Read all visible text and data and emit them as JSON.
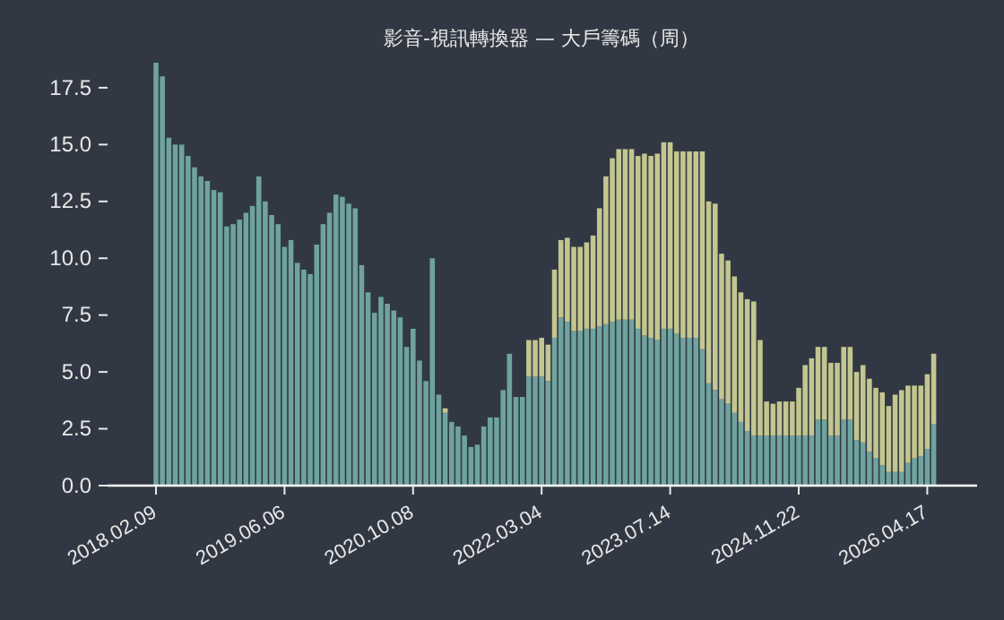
{
  "chart_data": {
    "type": "bar",
    "title": "影音-視訊轉換器 — 大戶籌碼（周）",
    "stacked": true,
    "categories": [
      "2018.02.09",
      null,
      null,
      null,
      null,
      null,
      null,
      null,
      null,
      null,
      null,
      null,
      null,
      null,
      null,
      null,
      null,
      null,
      null,
      null,
      "2019.06.06",
      null,
      null,
      null,
      null,
      null,
      null,
      null,
      null,
      null,
      null,
      null,
      null,
      null,
      null,
      null,
      null,
      null,
      null,
      null,
      "2020.10.08",
      null,
      null,
      null,
      null,
      null,
      null,
      null,
      null,
      null,
      null,
      null,
      null,
      null,
      null,
      null,
      null,
      null,
      null,
      null,
      "2022.03.04",
      null,
      null,
      null,
      null,
      null,
      null,
      null,
      null,
      null,
      null,
      null,
      null,
      null,
      null,
      null,
      null,
      null,
      null,
      null,
      "2023.07.14",
      null,
      null,
      null,
      null,
      null,
      null,
      null,
      null,
      null,
      null,
      null,
      null,
      null,
      null,
      null,
      null,
      null,
      null,
      null,
      "2024.11.22",
      null,
      null,
      null,
      null,
      null,
      null,
      null,
      null,
      null,
      null,
      null,
      null,
      null,
      null,
      null,
      null,
      null,
      null,
      null,
      "2026.04.17",
      null
    ],
    "series": [
      {
        "color": "#6fa39f",
        "values": [
          18.6,
          18.0,
          15.3,
          15.0,
          15.0,
          14.5,
          14.0,
          13.6,
          13.4,
          13.0,
          12.9,
          11.4,
          11.5,
          11.7,
          12.0,
          12.3,
          13.6,
          12.5,
          11.9,
          11.5,
          10.5,
          10.8,
          9.8,
          9.5,
          9.3,
          10.6,
          11.5,
          12.0,
          12.8,
          12.7,
          12.4,
          12.2,
          9.7,
          8.5,
          7.6,
          8.3,
          8.0,
          7.7,
          7.4,
          6.1,
          6.9,
          5.5,
          4.6,
          10.0,
          4.0,
          3.2,
          2.8,
          2.6,
          2.2,
          1.7,
          1.8,
          2.6,
          3.0,
          3.0,
          4.2,
          5.8,
          3.9,
          3.9,
          4.8,
          4.8,
          4.8,
          4.6,
          6.5,
          7.4,
          7.2,
          6.8,
          6.8,
          6.9,
          6.9,
          7.0,
          7.1,
          7.2,
          7.3,
          7.3,
          7.3,
          6.9,
          6.6,
          6.5,
          6.4,
          6.9,
          6.9,
          6.7,
          6.5,
          6.5,
          6.5,
          6.0,
          4.5,
          4.2,
          3.8,
          3.6,
          3.2,
          2.8,
          2.4,
          2.2,
          2.2,
          2.2,
          2.2,
          2.2,
          2.2,
          2.2,
          2.2,
          2.2,
          2.2,
          2.9,
          2.9,
          2.2,
          2.2,
          2.9,
          2.9,
          2.0,
          1.9,
          1.5,
          1.2,
          0.9,
          0.6,
          0.6,
          0.6,
          1.0,
          1.2,
          1.3,
          1.6,
          2.7
        ]
      },
      {
        "color": "#c3c690",
        "values": [
          0,
          0,
          0,
          0,
          0,
          0,
          0,
          0,
          0,
          0,
          0,
          0,
          0,
          0,
          0,
          0,
          0,
          0,
          0,
          0,
          0,
          0,
          0,
          0,
          0,
          0,
          0,
          0,
          0,
          0,
          0,
          0,
          0,
          0,
          0,
          0,
          0,
          0,
          0,
          0,
          0,
          0,
          0,
          0,
          0,
          0.2,
          0,
          0,
          0,
          0,
          0,
          0,
          0,
          0,
          0,
          0,
          0,
          0,
          1.6,
          1.6,
          1.7,
          1.6,
          3.0,
          3.4,
          3.7,
          3.7,
          3.7,
          3.8,
          4.1,
          5.2,
          6.5,
          7.2,
          7.5,
          7.5,
          7.5,
          7.6,
          8.0,
          8.0,
          8.2,
          8.2,
          8.2,
          8.0,
          8.2,
          8.2,
          8.2,
          8.7,
          8.0,
          8.2,
          6.4,
          6.3,
          6.0,
          5.7,
          5.8,
          5.9,
          4.2,
          1.5,
          1.4,
          1.5,
          1.5,
          1.5,
          2.1,
          3.1,
          3.4,
          3.2,
          3.2,
          3.2,
          3.2,
          3.2,
          3.2,
          3.0,
          3.4,
          3.2,
          3.1,
          3.2,
          2.9,
          3.4,
          3.6,
          3.4,
          3.2,
          3.1,
          3.3,
          3.1
        ]
      }
    ],
    "ylim": [
      0,
      18.6
    ],
    "yticks": [
      {
        "value": 0,
        "label": "0.0"
      },
      {
        "value": 2.5,
        "label": "2.5"
      },
      {
        "value": 5,
        "label": "5.0"
      },
      {
        "value": 7.5,
        "label": "7.5"
      },
      {
        "value": 10,
        "label": "10.0"
      },
      {
        "value": 12.5,
        "label": "12.5"
      },
      {
        "value": 15,
        "label": "15.0"
      },
      {
        "value": 17.5,
        "label": "17.5"
      }
    ]
  }
}
